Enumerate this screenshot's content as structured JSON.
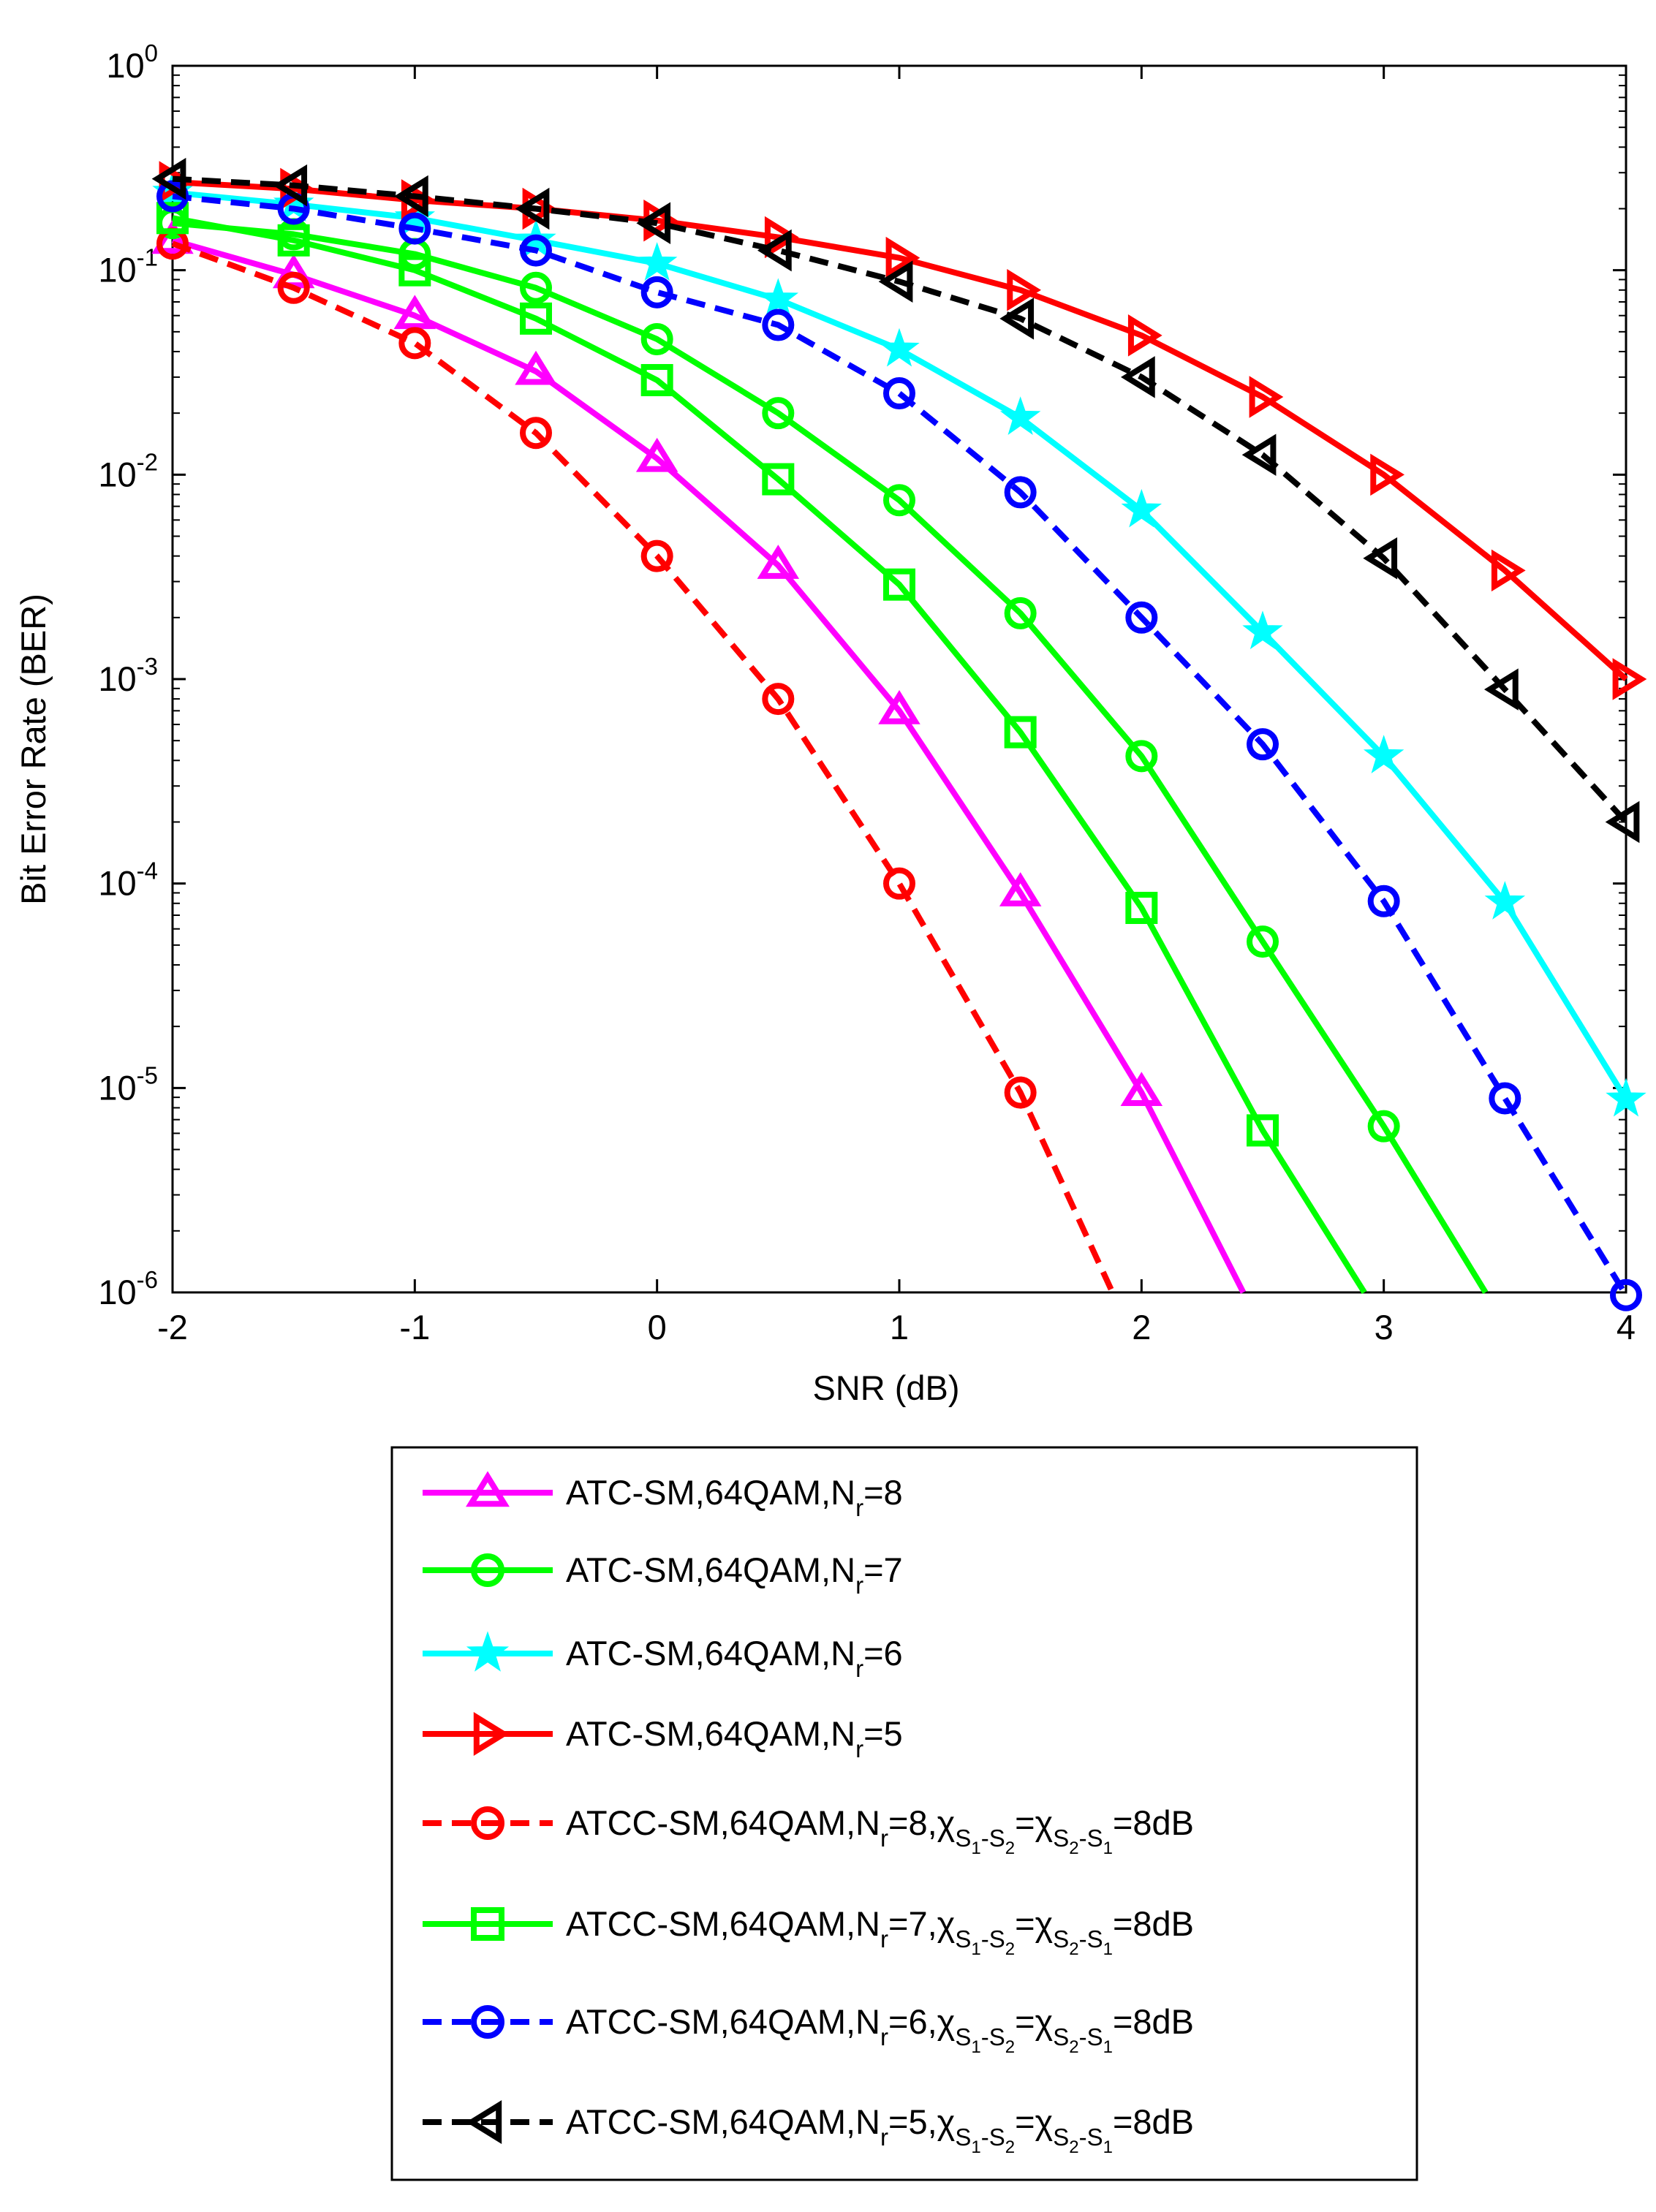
{
  "chart_data": {
    "type": "line",
    "xlabel": "SNR (dB)",
    "ylabel": "Bit Error Rate (BER)",
    "xlim": [
      -2,
      4
    ],
    "ylim": [
      1e-06,
      1
    ],
    "yscale": "log",
    "grid": false,
    "legend_position": "below",
    "x_ticks": [
      "-2",
      "-1",
      "0",
      "1",
      "2",
      "3",
      "4"
    ],
    "y_tick_base": "10",
    "y_tick_exponents": [
      "0",
      "-1",
      "-2",
      "-3",
      "-4",
      "-5",
      "-6"
    ],
    "series": [
      {
        "name": "ATC-SM,64QAM,N_r=8",
        "legend": {
          "prefix": "ATC-SM,64QAM,N",
          "sub": "r",
          "suffix": "=8"
        },
        "color": "#ff00ff",
        "dash": "solid",
        "marker": "triangle-up",
        "x": [
          -2,
          -1.5,
          -1,
          -0.5,
          0,
          0.5,
          1,
          1.5,
          2,
          2.42
        ],
        "y": [
          0.14,
          0.095,
          0.06,
          0.032,
          0.012,
          0.0036,
          0.0007,
          9e-05,
          9.5e-06,
          1e-06
        ],
        "marked": [
          true,
          true,
          true,
          true,
          true,
          true,
          true,
          true,
          true,
          false
        ]
      },
      {
        "name": "ATC-SM,64QAM,N_r=7",
        "legend": {
          "prefix": "ATC-SM,64QAM,N",
          "sub": "r",
          "suffix": "=7"
        },
        "color": "#00ff00",
        "dash": "solid",
        "marker": "circle",
        "x": [
          -2,
          -1.5,
          -1,
          -0.5,
          0,
          0.5,
          1,
          1.5,
          2,
          2.5,
          3,
          3.42
        ],
        "y": [
          0.17,
          0.15,
          0.12,
          0.082,
          0.046,
          0.02,
          0.0075,
          0.0021,
          0.00042,
          5.2e-05,
          6.5e-06,
          1e-06
        ],
        "marked": [
          true,
          true,
          true,
          true,
          true,
          true,
          true,
          true,
          true,
          true,
          true,
          false
        ]
      },
      {
        "name": "ATC-SM,64QAM,N_r=6",
        "legend": {
          "prefix": "ATC-SM,64QAM,N",
          "sub": "r",
          "suffix": "=6"
        },
        "color": "#00ffff",
        "dash": "solid",
        "marker": "star",
        "x": [
          -2,
          -1.5,
          -1,
          -0.5,
          0,
          0.5,
          1,
          1.5,
          2,
          2.5,
          3,
          3.5,
          4
        ],
        "y": [
          0.24,
          0.21,
          0.18,
          0.14,
          0.108,
          0.072,
          0.041,
          0.019,
          0.0067,
          0.0017,
          0.00042,
          8.1e-05,
          8.8e-06
        ],
        "marked": [
          true,
          true,
          true,
          true,
          true,
          true,
          true,
          true,
          true,
          true,
          true,
          true,
          true
        ]
      },
      {
        "name": "ATC-SM,64QAM,N_r=5",
        "legend": {
          "prefix": "ATC-SM,64QAM,N",
          "sub": "r",
          "suffix": "=5"
        },
        "color": "#ff0000",
        "dash": "solid",
        "marker": "triangle-right",
        "x": [
          -2,
          -1.5,
          -1,
          -0.5,
          0,
          0.5,
          1,
          1.5,
          2,
          2.5,
          3,
          3.5,
          4
        ],
        "y": [
          0.27,
          0.25,
          0.22,
          0.2,
          0.175,
          0.145,
          0.115,
          0.08,
          0.048,
          0.024,
          0.01,
          0.0034,
          0.001
        ],
        "marked": [
          true,
          true,
          true,
          true,
          true,
          true,
          true,
          true,
          true,
          true,
          true,
          true,
          true
        ]
      },
      {
        "name": "ATCC-SM,64QAM,N_r=8,χ_S1-S2=χ_S2-S1=8dB",
        "legend": {
          "prefix": "ATCC-SM,64QAM,N",
          "sub": "r",
          "suffix": "=8,",
          "chi": "χ",
          "s1": "S",
          "s1sub": "1",
          "dash1": "-",
          "s2": "S",
          "s2sub": "2",
          "eq": "=",
          "s3": "S",
          "s3sub": "2",
          "dash2": "-",
          "s4": "S",
          "s4sub": "1",
          "end": "=8dB"
        },
        "color": "#ff0000",
        "dash": "dashed",
        "marker": "circle",
        "x": [
          -2,
          -1.5,
          -1,
          -0.5,
          0,
          0.5,
          1,
          1.5,
          1.88
        ],
        "y": [
          0.135,
          0.082,
          0.044,
          0.016,
          0.004,
          0.0008,
          0.0001,
          9.5e-06,
          1e-06
        ],
        "marked": [
          true,
          true,
          true,
          true,
          true,
          true,
          true,
          true,
          false
        ]
      },
      {
        "name": "ATCC-SM,64QAM,N_r=7,χ_S1-S2=χ_S2-S1=8dB",
        "legend": {
          "prefix": "ATCC-SM,64QAM,N",
          "sub": "r",
          "suffix": "=7,",
          "chi": "χ",
          "s1": "S",
          "s1sub": "1",
          "dash1": "-",
          "s2": "S",
          "s2sub": "2",
          "eq": "=",
          "s3": "S",
          "s3sub": "2",
          "dash2": "-",
          "s4": "S",
          "s4sub": "1",
          "end": "=8dB"
        },
        "color": "#00ff00",
        "dash": "solid",
        "marker": "square",
        "x": [
          -2,
          -1.5,
          -1,
          -0.5,
          0,
          0.5,
          1,
          1.5,
          2,
          2.5,
          2.92
        ],
        "y": [
          0.18,
          0.14,
          0.1,
          0.058,
          0.029,
          0.0095,
          0.0029,
          0.00055,
          7.6e-05,
          6.2e-06,
          1e-06
        ],
        "marked": [
          true,
          true,
          true,
          true,
          true,
          true,
          true,
          true,
          true,
          true,
          false
        ]
      },
      {
        "name": "ATCC-SM,64QAM,N_r=6,χ_S1-S2=χ_S2-S1=8dB",
        "legend": {
          "prefix": "ATCC-SM,64QAM,N",
          "sub": "r",
          "suffix": "=6,",
          "chi": "χ",
          "s1": "S",
          "s1sub": "1",
          "dash1": "-",
          "s2": "S",
          "s2sub": "2",
          "eq": "=",
          "s3": "S",
          "s3sub": "2",
          "dash2": "-",
          "s4": "S",
          "s4sub": "1",
          "end": "=8dB"
        },
        "color": "#0000ff",
        "dash": "dashed",
        "marker": "circle",
        "x": [
          -2,
          -1.5,
          -1,
          -0.5,
          0,
          0.5,
          1,
          1.5,
          2,
          2.5,
          3,
          3.5,
          4
        ],
        "y": [
          0.23,
          0.2,
          0.16,
          0.125,
          0.078,
          0.054,
          0.025,
          0.0082,
          0.002,
          0.00048,
          8.2e-05,
          8.9e-06,
          9.7e-07
        ],
        "marked": [
          true,
          true,
          true,
          true,
          true,
          true,
          true,
          true,
          true,
          true,
          true,
          true,
          true
        ]
      },
      {
        "name": "ATCC-SM,64QAM,N_r=5,χ_S1-S2=χ_S2-S1=8dB",
        "legend": {
          "prefix": "ATCC-SM,64QAM,N",
          "sub": "r",
          "suffix": "=5,",
          "chi": "χ",
          "s1": "S",
          "s1sub": "1",
          "dash1": "-",
          "s2": "S",
          "s2sub": "2",
          "eq": "=",
          "s3": "S",
          "s3sub": "2",
          "dash2": "-",
          "s4": "S",
          "s4sub": "1",
          "end": "=8dB"
        },
        "color": "#000000",
        "dash": "dashed",
        "marker": "triangle-left",
        "x": [
          -2,
          -1.5,
          -1,
          -0.5,
          0,
          0.5,
          1,
          1.5,
          2,
          2.5,
          3,
          3.5,
          4
        ],
        "y": [
          0.28,
          0.26,
          0.23,
          0.2,
          0.17,
          0.125,
          0.088,
          0.058,
          0.03,
          0.0125,
          0.0039,
          0.00089,
          0.0002
        ],
        "marked": [
          true,
          true,
          true,
          true,
          true,
          true,
          true,
          true,
          true,
          true,
          true,
          true,
          true
        ]
      }
    ]
  }
}
